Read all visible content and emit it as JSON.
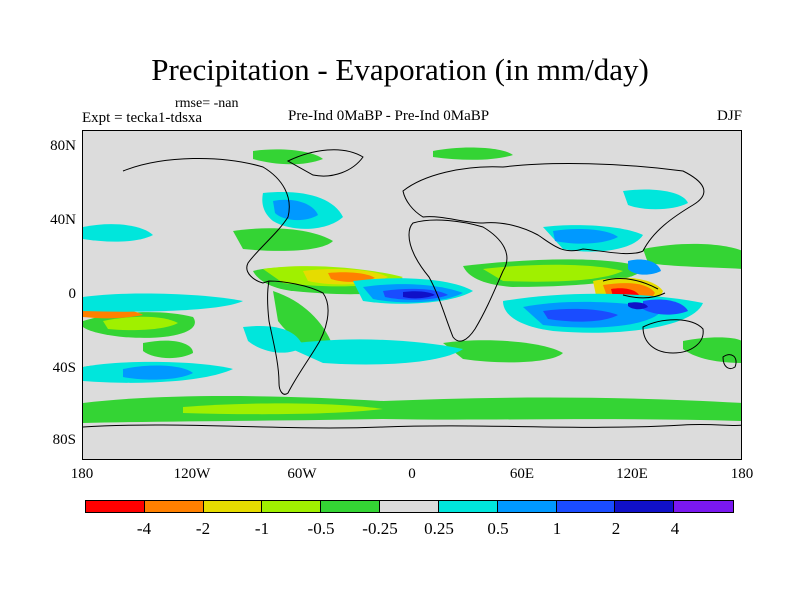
{
  "title": "Precipitation - Evaporation (in mm/day)",
  "rmse": "rmse= -nan",
  "expt": "Expt = tecka1-tdsxa",
  "comparison": "Pre-Ind 0MaBP - Pre-Ind    0MaBP",
  "season": "DJF",
  "lat_labels": [
    "80N",
    "40N",
    "0",
    "40S",
    "80S"
  ],
  "lon_labels": [
    "180",
    "120W",
    "60W",
    "0",
    "60E",
    "120E",
    "180"
  ],
  "colorbar": {
    "colors": [
      "#ff0000",
      "#ff8000",
      "#e6dc00",
      "#a0f000",
      "#34d434",
      "#dcdcdc",
      "#00e6dc",
      "#0099ff",
      "#1a4cff",
      "#1010c8",
      "#7a18f0"
    ],
    "labels": [
      "-4",
      "-2",
      "-1",
      "-0.5",
      "-0.25",
      "0.25",
      "0.5",
      "1",
      "2",
      "4"
    ]
  }
}
